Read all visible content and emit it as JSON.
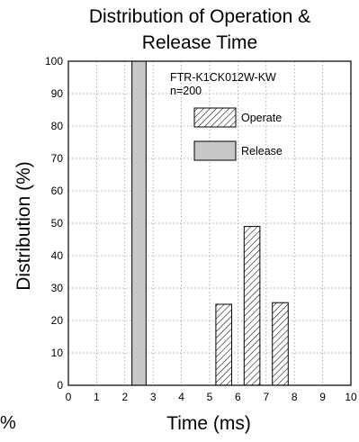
{
  "chart_data": {
    "type": "bar",
    "title": [
      "Distribution of Operation &",
      "Release Time"
    ],
    "xlabel": "Time (ms)",
    "ylabel": "Distribution (%)",
    "xlim": [
      0,
      10
    ],
    "ylim": [
      0,
      100
    ],
    "x_ticks": [
      "0",
      "1",
      "2",
      "3",
      "4",
      "5",
      "6",
      "7",
      "8",
      "9",
      "10"
    ],
    "y_ticks": [
      "0",
      "10",
      "20",
      "30",
      "40",
      "50",
      "60",
      "70",
      "80",
      "90",
      "100"
    ],
    "grid": true,
    "annotation": [
      "FTR-K1CK012W-KW",
      "n=200"
    ],
    "legend_position": "top-right",
    "series": [
      {
        "name": "Operate",
        "pattern": "hatched",
        "bars": [
          {
            "x_start": 5.0,
            "x_end": 6.0,
            "value": 25
          },
          {
            "x_start": 6.0,
            "x_end": 7.0,
            "value": 49
          },
          {
            "x_start": 7.0,
            "x_end": 8.0,
            "value": 25.5
          }
        ]
      },
      {
        "name": "Release",
        "pattern": "solid",
        "color": "#c8c8c8",
        "bars": [
          {
            "x_start": 2.0,
            "x_end": 3.0,
            "value": 100
          }
        ]
      }
    ]
  },
  "stray_text": "%"
}
